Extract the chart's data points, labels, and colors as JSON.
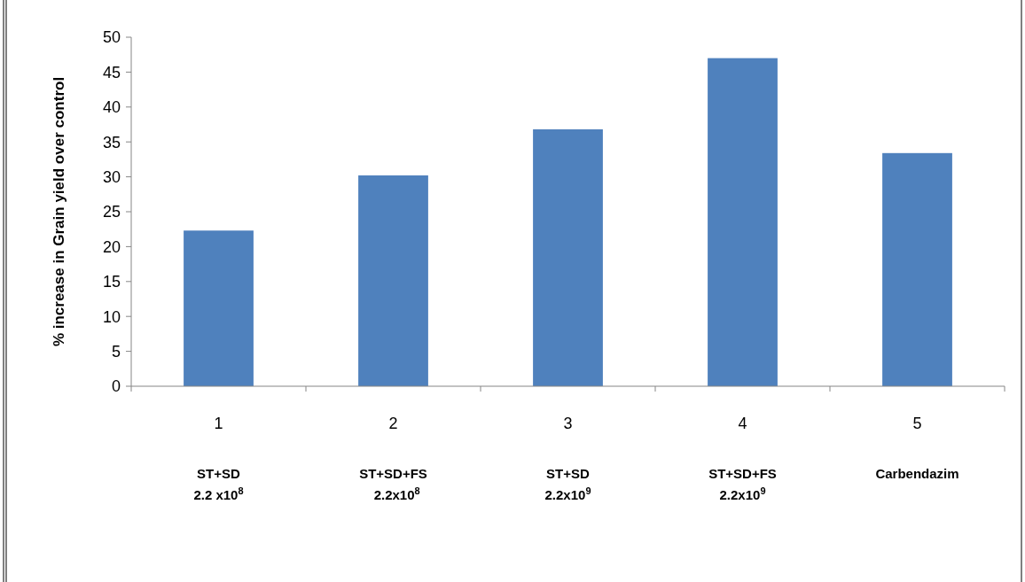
{
  "chart_data": {
    "type": "bar",
    "ylabel": "% increase in Grain yield over control",
    "categories": [
      "1",
      "2",
      "3",
      "4",
      "5"
    ],
    "values": [
      22.3,
      30.2,
      36.8,
      47.0,
      33.4
    ],
    "color": "#4f81bd",
    "ylim": [
      0,
      50
    ],
    "yticks": [
      0,
      5,
      10,
      15,
      20,
      25,
      30,
      35,
      40,
      45,
      50
    ],
    "grid": false,
    "annotations": [
      "ST+SD\n2.2 x10$^{8}$",
      "ST+SD+FS\n  2.2x10$^{8}$",
      "ST+SD\n2.2x10$^{9}$",
      "ST+SD+FS\n2.2x10$^{9}$",
      "Carbendazim"
    ]
  }
}
